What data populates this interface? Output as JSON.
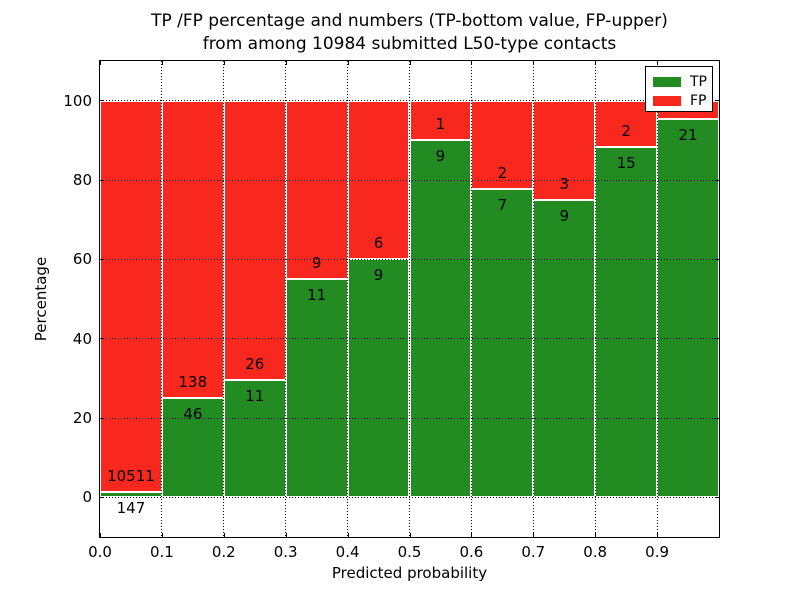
{
  "figure": {
    "title_line1": "TP /FP percentage and numbers (TP-bottom value, FP-upper)",
    "title_line2": "from among 10984 submitted L50-type contacts"
  },
  "chart_data": {
    "type": "bar",
    "stacked": true,
    "title": "TP /FP percentage and numbers (TP-bottom value, FP-upper) from among 10984 submitted L50-type contacts",
    "xlabel": "Predicted probability",
    "ylabel": "Percentage",
    "xlim": [
      0.0,
      1.0
    ],
    "ylim": [
      -10,
      110
    ],
    "xtick_labels": [
      "0.0",
      "0.1",
      "0.2",
      "0.3",
      "0.4",
      "0.5",
      "0.6",
      "0.7",
      "0.8",
      "0.9"
    ],
    "ytick_values": [
      0,
      20,
      40,
      60,
      80,
      100
    ],
    "grid": "dotted",
    "colors": {
      "tp_green": "#228b22",
      "fp_red": "#f8281e",
      "bar_edge": "#ffffff"
    },
    "legend": {
      "position": "upper-right",
      "entries": [
        {
          "label": "TP",
          "color": "#228b22"
        },
        {
          "label": "FP",
          "color": "#f8281e"
        }
      ]
    },
    "bins": [
      {
        "x_range": [
          0.0,
          0.1
        ],
        "tp_count_label": "147",
        "fp_count_label": "10511",
        "tp_pct": 1.4,
        "fp_pct": 98.6
      },
      {
        "x_range": [
          0.1,
          0.2
        ],
        "tp_count_label": "46",
        "fp_count_label": "138",
        "tp_pct": 25.0,
        "fp_pct": 75.0
      },
      {
        "x_range": [
          0.2,
          0.3
        ],
        "tp_count_label": "11",
        "fp_count_label": "26",
        "tp_pct": 29.7,
        "fp_pct": 70.3
      },
      {
        "x_range": [
          0.3,
          0.4
        ],
        "tp_count_label": "11",
        "fp_count_label": "9",
        "tp_pct": 55.0,
        "fp_pct": 45.0
      },
      {
        "x_range": [
          0.4,
          0.5
        ],
        "tp_count_label": "9",
        "fp_count_label": "6",
        "tp_pct": 60.0,
        "fp_pct": 40.0
      },
      {
        "x_range": [
          0.5,
          0.6
        ],
        "tp_count_label": "9",
        "fp_count_label": "1",
        "tp_pct": 90.0,
        "fp_pct": 10.0
      },
      {
        "x_range": [
          0.6,
          0.7
        ],
        "tp_count_label": "7",
        "fp_count_label": "2",
        "tp_pct": 77.8,
        "fp_pct": 22.2
      },
      {
        "x_range": [
          0.7,
          0.8
        ],
        "tp_count_label": "9",
        "fp_count_label": "3",
        "tp_pct": 75.0,
        "fp_pct": 25.0
      },
      {
        "x_range": [
          0.8,
          0.9
        ],
        "tp_count_label": "15",
        "fp_count_label": "2",
        "tp_pct": 88.2,
        "fp_pct": 11.8
      },
      {
        "x_range": [
          0.9,
          1.0
        ],
        "tp_count_label": "21",
        "fp_count_label": "",
        "tp_pct": 95.5,
        "fp_pct": 4.5
      }
    ]
  }
}
